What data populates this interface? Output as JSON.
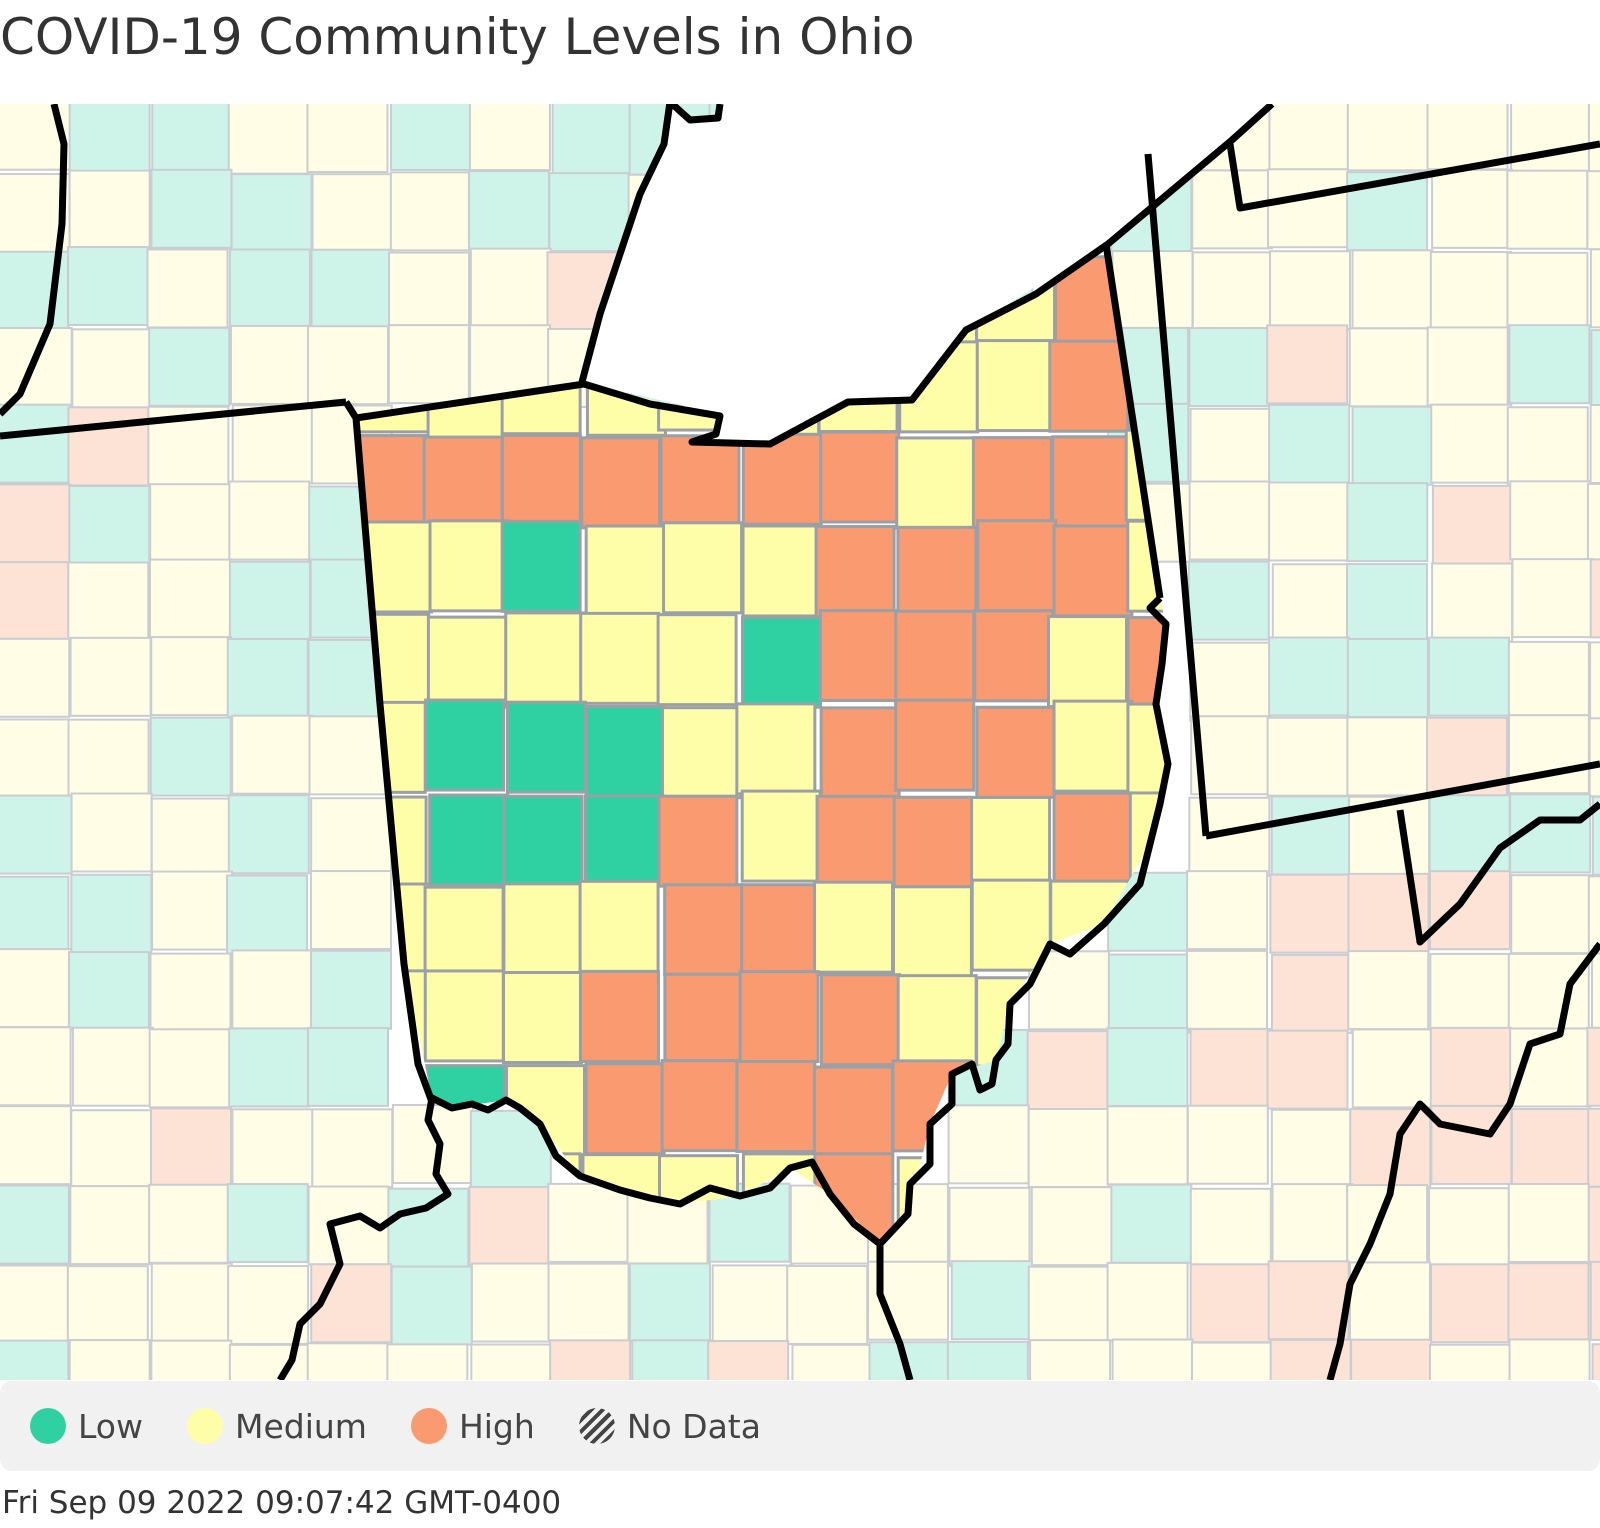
{
  "title": "COVID-19 Community Levels in Ohio",
  "legend": {
    "items": [
      {
        "key": "low",
        "label": "Low",
        "color": "#2fd1a2"
      },
      {
        "key": "medium",
        "label": "Medium",
        "color": "#fffea8"
      },
      {
        "key": "high",
        "label": "High",
        "color": "#f99a70"
      },
      {
        "key": "nodata",
        "label": "No Data",
        "icon": "hatch-pattern-icon"
      }
    ]
  },
  "map": {
    "focus_state": "Ohio",
    "colors": {
      "low": "#2fd1a2",
      "medium": "#fffea8",
      "high": "#f99a70",
      "low_faded": "#cef4ea",
      "medium_faded": "#fffde6",
      "high_faded": "#fde3d6",
      "state_border": "#000000",
      "county_border": "#9aa0a6"
    }
  },
  "timestamp": "Fri Sep 09 2022 09:07:42 GMT-0400"
}
